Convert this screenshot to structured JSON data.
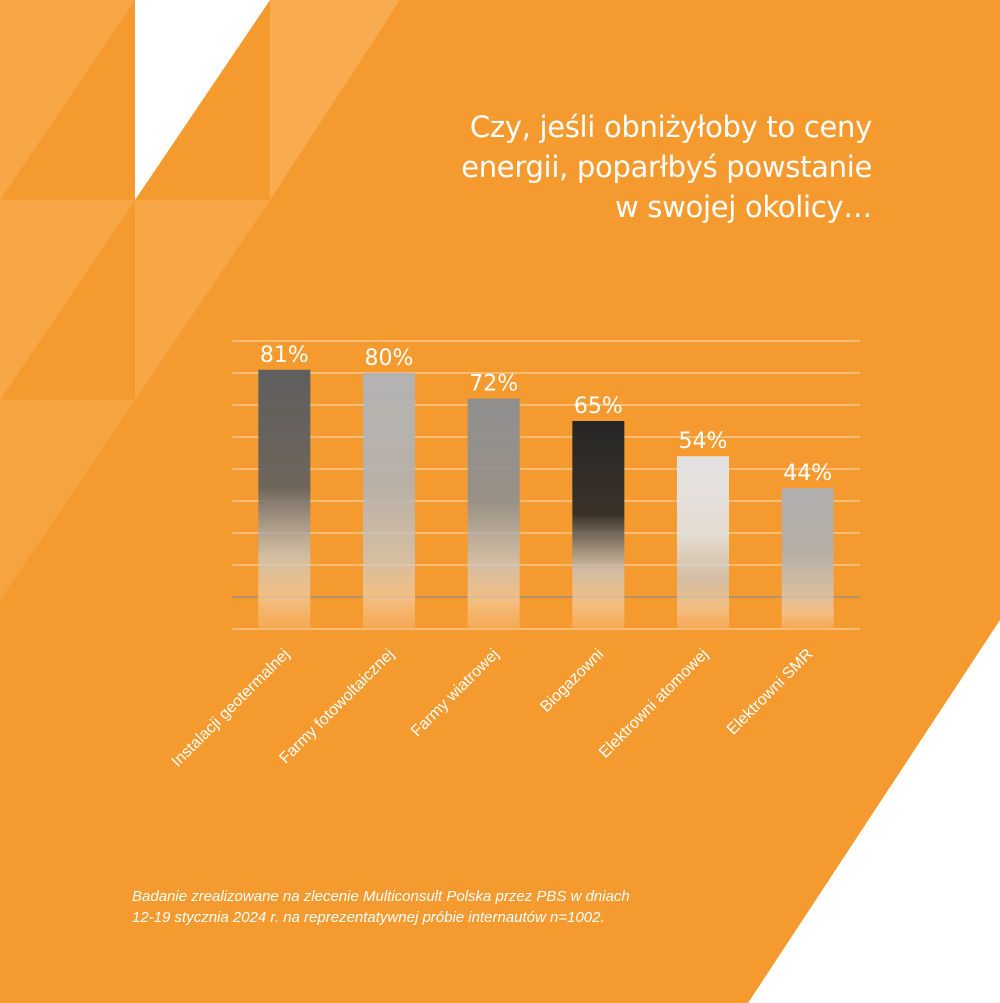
{
  "colors": {
    "background": "#f59a2f",
    "accent_light": "#f7ac4f",
    "text": "#ffffff"
  },
  "title_lines": [
    "Czy, jeśli obniżyłoby to ceny",
    "energii, poparłbyś powstanie",
    "w swojej okolicy…"
  ],
  "footnote_lines": [
    "Badanie zrealizowane na zlecenie Multiconsult Polska przez PBS w dniach",
    "12-19 stycznia 2024 r. na reprezentatywnej próbie internautów n=1002."
  ],
  "chart_data": {
    "type": "bar",
    "categories": [
      "Instalacji geotermalnej",
      "Farmy fotowoltaicznej",
      "Farmy wiatrowej",
      "Biogazowni",
      "Elektrowni atomowej",
      "Elektrowni SMR"
    ],
    "values": [
      81,
      80,
      72,
      65,
      54,
      44
    ],
    "data_labels": [
      "81%",
      "80%",
      "72%",
      "65%",
      "54%",
      "44%"
    ],
    "unit": "%",
    "ylim": [
      0,
      90
    ],
    "grid": true,
    "bar_colors": [
      "#5f5f5f",
      "#b3b3b3",
      "#8f8f8f",
      "#262626",
      "#e3e3e3",
      "#b0b0b0"
    ]
  }
}
